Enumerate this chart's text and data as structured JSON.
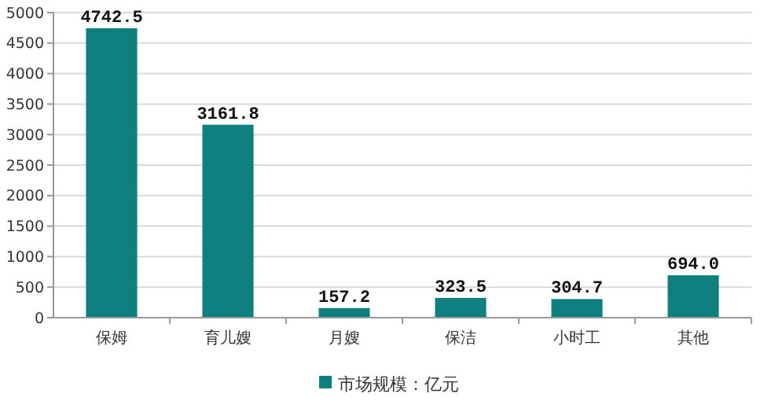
{
  "chart_data": {
    "type": "bar",
    "categories": [
      "保姆",
      "育儿嫂",
      "月嫂",
      "保洁",
      "小时工",
      "其他"
    ],
    "series": [
      {
        "name": "市场规模：亿元",
        "color": "#0e8080",
        "values": [
          4742.5,
          3161.8,
          157.2,
          323.5,
          304.7,
          694.0
        ]
      }
    ],
    "value_labels": [
      "4742.5",
      "3161.8",
      "157.2",
      "323.5",
      "304.7",
      "694.0"
    ],
    "ylim": [
      0,
      5000
    ],
    "yticks": [
      0,
      500,
      1000,
      1500,
      2000,
      2500,
      3000,
      3500,
      4000,
      4500,
      5000
    ],
    "grid": "y",
    "legend": "bottom"
  }
}
